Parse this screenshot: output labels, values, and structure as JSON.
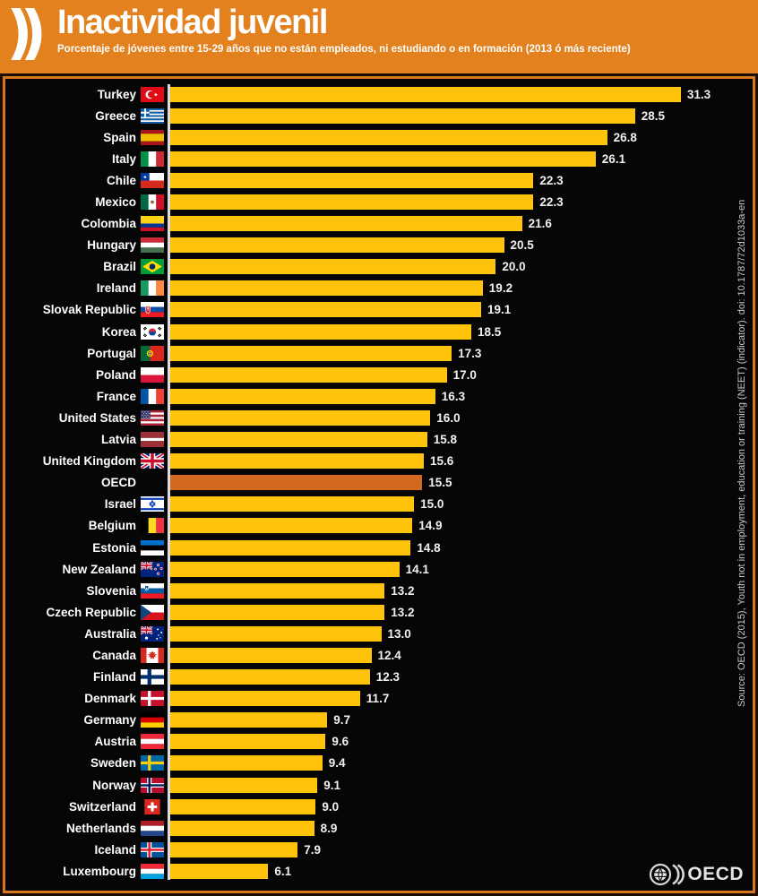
{
  "header": {
    "title": "Inactividad juvenil",
    "subtitle": "Porcentaje de jóvenes entre 15-29 años que no están empleados, ni estudiando o en formación (2013 ó más reciente)",
    "logo_icon": "oecd-chevrons-icon"
  },
  "colors": {
    "header_bg": "#E2811E",
    "frame_border": "#D8761B",
    "chart_bg": "#060606",
    "bar": "#FFC30B",
    "highlight_bar": "#D2691E",
    "axis_line": "#DCDCDC",
    "text": "#FFFFFF"
  },
  "chart_data": {
    "type": "bar",
    "orientation": "horizontal",
    "title": "Inactividad juvenil",
    "subtitle": "Porcentaje de jóvenes entre 15-29 años que no están empleados, ni estudiando o en formación (2013 ó más reciente)",
    "unit": "%",
    "xlim": [
      0,
      33
    ],
    "grid": false,
    "legend": false,
    "bar_color": "#FFC30B",
    "highlight": {
      "category": "OECD",
      "index": 18,
      "color": "#D2691E"
    },
    "categories": [
      "Turkey",
      "Greece",
      "Spain",
      "Italy",
      "Chile",
      "Mexico",
      "Colombia",
      "Hungary",
      "Brazil",
      "Ireland",
      "Slovak Republic",
      "Korea",
      "Portugal",
      "Poland",
      "France",
      "United States",
      "Latvia",
      "United Kingdom",
      "OECD",
      "Israel",
      "Belgium",
      "Estonia",
      "New Zealand",
      "Slovenia",
      "Czech Republic",
      "Australia",
      "Canada",
      "Finland",
      "Denmark",
      "Germany",
      "Austria",
      "Sweden",
      "Norway",
      "Switzerland",
      "Netherlands",
      "Iceland",
      "Luxembourg"
    ],
    "values": [
      31.3,
      28.5,
      26.8,
      26.1,
      22.3,
      22.3,
      21.6,
      20.5,
      20.0,
      19.2,
      19.1,
      18.5,
      17.3,
      17.0,
      16.3,
      16.0,
      15.8,
      15.6,
      15.5,
      15.0,
      14.9,
      14.8,
      14.1,
      13.2,
      13.2,
      13.0,
      12.4,
      12.3,
      11.7,
      9.7,
      9.6,
      9.4,
      9.1,
      9.0,
      8.9,
      7.9,
      6.1
    ],
    "value_labels": [
      "31.3",
      "28.5",
      "26.8",
      "26.1",
      "22.3",
      "22.3",
      "21.6",
      "20.5",
      "20.0",
      "19.2",
      "19.1",
      "18.5",
      "17.3",
      "17.0",
      "16.3",
      "16.0",
      "15.8",
      "15.6",
      "15.5",
      "15.0",
      "14.9",
      "14.8",
      "14.1",
      "13.2",
      "13.2",
      "13.0",
      "12.4",
      "12.3",
      "11.7",
      "9.7",
      "9.6",
      "9.4",
      "9.1",
      "9.0",
      "8.9",
      "7.9",
      "6.1"
    ],
    "flags": [
      "tr",
      "gr",
      "es",
      "it",
      "cl",
      "mx",
      "co",
      "hu",
      "br",
      "ie",
      "sk",
      "kr",
      "pt",
      "pl",
      "fr",
      "us",
      "lv",
      "gb",
      null,
      "il",
      "be",
      "ee",
      "nz",
      "si",
      "cz",
      "au",
      "ca",
      "fi",
      "dk",
      "de",
      "at",
      "se",
      "no",
      "ch",
      "nl",
      "is",
      "lu"
    ]
  },
  "source_note": "Source: OECD (2015), Youth not in employment, education or training (NEET) (indicator). doi: 10.1787/72d1033a-en",
  "footer": {
    "logo_text": "OECD",
    "logo_icon": "oecd-globe-logo-icon"
  }
}
